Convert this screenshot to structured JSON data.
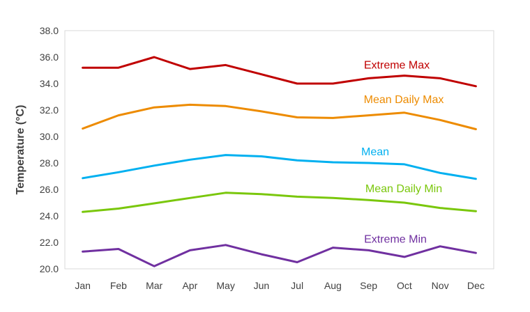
{
  "chart_data": {
    "type": "line",
    "title": "",
    "xlabel": "",
    "ylabel": "Temperature (°C)",
    "ylim": [
      20.0,
      38.0
    ],
    "ytick_step": 2.0,
    "grid": false,
    "legend": "inline labels",
    "categories": [
      "Jan",
      "Feb",
      "Mar",
      "Apr",
      "May",
      "Jun",
      "Jul",
      "Aug",
      "Sep",
      "Oct",
      "Nov",
      "Dec"
    ],
    "series": [
      {
        "name": "Extreme Max",
        "color": "#C00000",
        "values": [
          35.2,
          35.2,
          36.0,
          35.1,
          35.4,
          34.7,
          34.0,
          34.0,
          34.4,
          34.6,
          34.4,
          33.8
        ]
      },
      {
        "name": "Mean Daily Max",
        "color": "#ED8B00",
        "values": [
          30.6,
          31.6,
          32.2,
          32.4,
          32.3,
          31.9,
          31.45,
          31.4,
          31.6,
          31.8,
          31.25,
          30.55
        ]
      },
      {
        "name": "Mean",
        "color": "#00B0F0",
        "values": [
          26.85,
          27.3,
          27.8,
          28.25,
          28.6,
          28.5,
          28.2,
          28.05,
          28.0,
          27.9,
          27.25,
          26.8
        ]
      },
      {
        "name": "Mean Daily Min",
        "color": "#7AC70C",
        "values": [
          24.3,
          24.55,
          24.95,
          25.35,
          25.75,
          25.65,
          25.45,
          25.35,
          25.2,
          25.0,
          24.6,
          24.35
        ]
      },
      {
        "name": "Extreme Min",
        "color": "#7030A0",
        "values": [
          21.3,
          21.5,
          20.2,
          21.4,
          21.8,
          21.1,
          20.5,
          21.6,
          21.4,
          20.9,
          21.7,
          21.2
        ]
      }
    ]
  }
}
